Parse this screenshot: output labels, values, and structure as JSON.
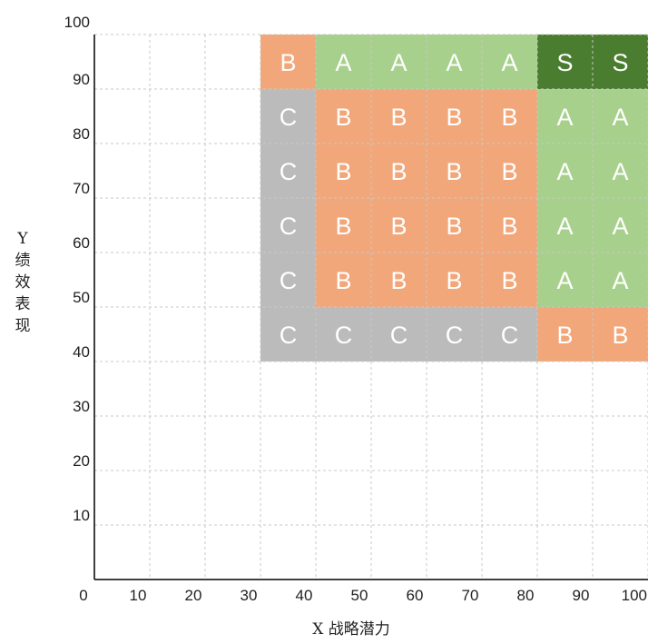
{
  "chart_data": {
    "type": "heatmap",
    "title": "",
    "xlabel": "X 战略潜力",
    "ylabel": "Y 绩效表现",
    "xlim": [
      0,
      100
    ],
    "ylim": [
      0,
      100
    ],
    "x_ticks": [
      "0",
      "10",
      "20",
      "30",
      "40",
      "50",
      "60",
      "70",
      "80",
      "90",
      "100"
    ],
    "y_ticks": [
      "10",
      "20",
      "30",
      "40",
      "50",
      "60",
      "70",
      "80",
      "90",
      "100"
    ],
    "grid": true,
    "grid_style": "dashed",
    "x_bins": [
      [
        30,
        40
      ],
      [
        40,
        50
      ],
      [
        50,
        60
      ],
      [
        60,
        70
      ],
      [
        70,
        80
      ],
      [
        80,
        90
      ],
      [
        90,
        100
      ]
    ],
    "y_bins": [
      [
        90,
        100
      ],
      [
        80,
        90
      ],
      [
        70,
        80
      ],
      [
        60,
        70
      ],
      [
        50,
        60
      ],
      [
        40,
        50
      ]
    ],
    "grades": [
      [
        "B",
        "A",
        "A",
        "A",
        "A",
        "S",
        "S"
      ],
      [
        "C",
        "B",
        "B",
        "B",
        "B",
        "A",
        "A"
      ],
      [
        "C",
        "B",
        "B",
        "B",
        "B",
        "A",
        "A"
      ],
      [
        "C",
        "B",
        "B",
        "B",
        "B",
        "A",
        "A"
      ],
      [
        "C",
        "B",
        "B",
        "B",
        "B",
        "A",
        "A"
      ],
      [
        "C",
        "C",
        "C",
        "C",
        "C",
        "B",
        "B"
      ]
    ],
    "grade_colors": {
      "S": "#4a7d2f",
      "A": "#a7d08c",
      "B": "#f1a77a",
      "C": "#bbbbbb"
    }
  }
}
